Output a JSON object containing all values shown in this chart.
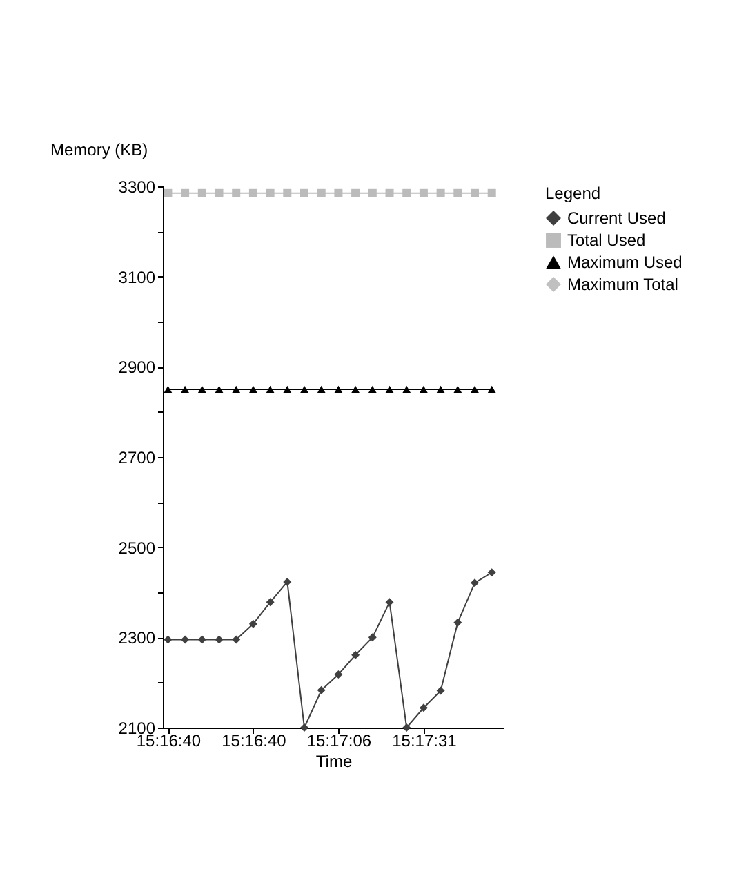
{
  "chart_data": {
    "type": "line",
    "xlabel": "Time",
    "ylabel": "Memory (KB)",
    "legend_title": "Legend",
    "legend": "right",
    "grid": false,
    "categories": [
      "15:16:40",
      null,
      null,
      null,
      null,
      "15:16:40",
      null,
      null,
      null,
      null,
      "15:17:06",
      null,
      null,
      null,
      null,
      "15:17:31",
      null,
      null,
      null,
      null
    ],
    "ylim": [
      2100,
      3300
    ],
    "yticks": [
      2100,
      {
        "value": 2200,
        "label": null
      },
      2300,
      {
        "value": 2400,
        "label": null
      },
      2500,
      {
        "value": 2600,
        "label": null
      },
      2700,
      {
        "value": 2800,
        "label": null
      },
      2900,
      {
        "value": 3000,
        "label": null
      },
      3100,
      {
        "value": 3200,
        "label": null
      },
      3300
    ],
    "series": [
      {
        "name": "Current Used",
        "color": "#404040",
        "marker": "diamond",
        "values": [
          2295,
          2295,
          2295,
          2295,
          2295,
          2330,
          2378,
          2423,
          2100,
          2183,
          2218,
          2261,
          2300,
          2378,
          2100,
          2144,
          2182,
          2333,
          2421,
          2444
        ]
      },
      {
        "name": "Total Used",
        "color": "#bbbbbb",
        "marker": "square",
        "values": [
          3285,
          3285,
          3285,
          3285,
          3285,
          3285,
          3285,
          3285,
          3285,
          3285,
          3285,
          3285,
          3285,
          3285,
          3285,
          3285,
          3285,
          3285,
          3285,
          3285
        ]
      },
      {
        "name": "Maximum Used",
        "color": "#000000",
        "marker": "triangle",
        "values": [
          2850,
          2850,
          2850,
          2850,
          2850,
          2850,
          2850,
          2850,
          2850,
          2850,
          2850,
          2850,
          2850,
          2850,
          2850,
          2850,
          2850,
          2850,
          2850,
          2850
        ]
      },
      {
        "name": "Maximum Total",
        "color": "#c0c0c0",
        "marker": "diamond",
        "values": [
          null,
          null,
          null,
          null,
          null,
          null,
          null,
          null,
          null,
          null,
          null,
          null,
          null,
          null,
          null,
          null,
          null,
          null,
          null,
          null
        ]
      }
    ]
  }
}
